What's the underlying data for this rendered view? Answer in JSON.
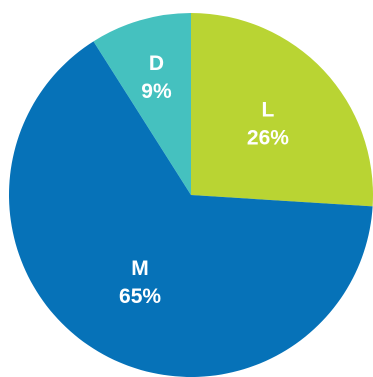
{
  "chart_data": {
    "type": "pie",
    "title": "",
    "start_angle_deg": 0,
    "direction": "clockwise",
    "slices": [
      {
        "label": "L",
        "value": 26,
        "value_text": "26%",
        "color": "#b9d433"
      },
      {
        "label": "M",
        "value": 65,
        "value_text": "65%",
        "color": "#0672b8"
      },
      {
        "label": "D",
        "value": 9,
        "value_text": "9%",
        "color": "#45c1bf"
      }
    ]
  }
}
